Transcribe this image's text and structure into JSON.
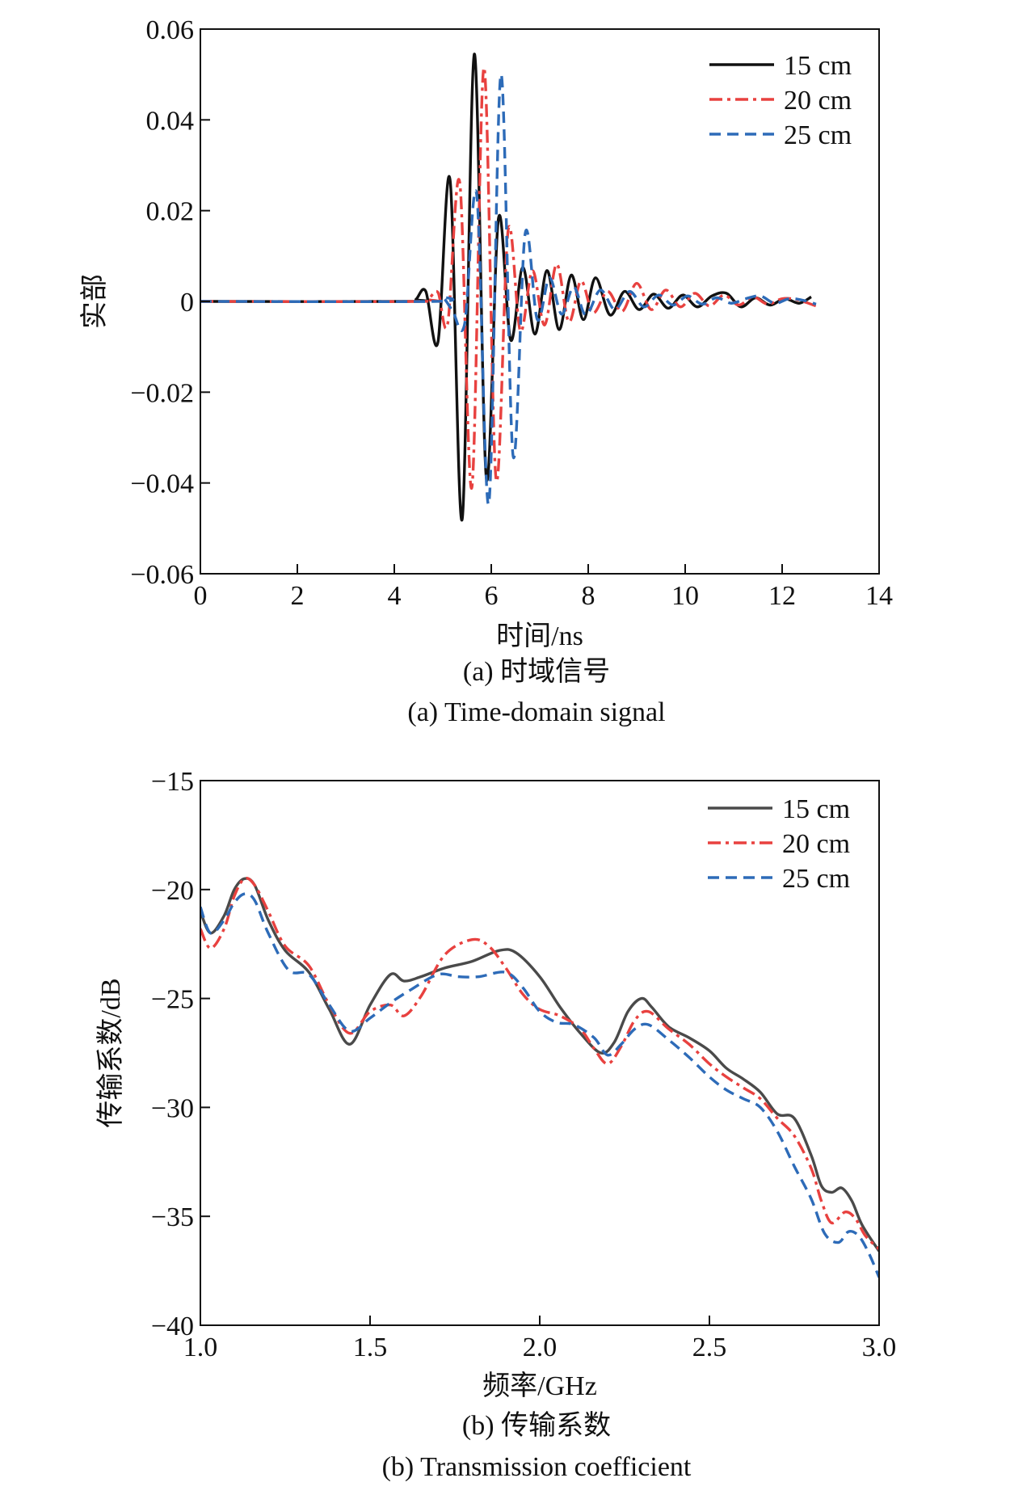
{
  "chart_data": [
    {
      "type": "line",
      "title": "",
      "xlabel": "时间/ns",
      "ylabel": "实部",
      "xlim": [
        0,
        14
      ],
      "ylim": [
        -0.06,
        0.06
      ],
      "xticks": [
        0,
        2,
        4,
        6,
        8,
        10,
        12,
        14
      ],
      "xtick_labels": [
        "0",
        "2",
        "4",
        "6",
        "8",
        "10",
        "12",
        "14"
      ],
      "yticks": [
        0.06,
        0.04,
        0.02,
        0,
        -0.02,
        -0.04,
        -0.06
      ],
      "ytick_labels": [
        "0.06",
        "0.04",
        "0.02",
        "0",
        "−0.02",
        "−0.04",
        "−0.06"
      ],
      "grid": false,
      "legend_position": "top-right",
      "caption_cn": "(a) 时域信号",
      "caption_en": "(a) Time-domain signal",
      "series": [
        {
          "name": "15 cm",
          "color": "#111111",
          "style": "solid",
          "x": [
            0,
            4.3,
            4.45,
            4.65,
            4.9,
            5.15,
            5.4,
            5.65,
            5.9,
            6.15,
            6.4,
            6.65,
            6.9,
            7.15,
            7.4,
            7.65,
            7.9,
            8.15,
            8.45,
            8.75,
            9.05,
            9.35,
            9.65,
            9.95,
            10.25,
            10.55,
            10.85,
            11.15,
            11.45,
            11.75,
            12.05,
            12.35,
            12.6
          ],
          "y": [
            0,
            0,
            0.0005,
            0.0022,
            -0.009,
            0.0268,
            -0.048,
            0.0545,
            -0.039,
            0.0184,
            -0.0085,
            0.0075,
            -0.0072,
            0.0068,
            -0.0062,
            0.0058,
            -0.004,
            0.0052,
            -0.003,
            0.0022,
            -0.0018,
            0.0016,
            -0.0015,
            0.0014,
            -0.0012,
            0.0012,
            0.0018,
            -0.0012,
            0.0008,
            -0.0008,
            0.0006,
            -0.0004,
            0.001
          ]
        },
        {
          "name": "20 cm",
          "color": "#e8413f",
          "style": "dashdot",
          "x": [
            0,
            4.5,
            4.7,
            4.9,
            5.1,
            5.35,
            5.6,
            5.85,
            6.1,
            6.35,
            6.6,
            6.85,
            7.1,
            7.35,
            7.6,
            7.85,
            8.1,
            8.4,
            8.7,
            9.0,
            9.3,
            9.6,
            9.9,
            10.2,
            10.5,
            10.8,
            11.1,
            11.4,
            11.7,
            12.0,
            12.3,
            12.7
          ],
          "y": [
            0,
            0,
            0.0005,
            0.002,
            -0.005,
            0.0262,
            -0.041,
            0.0515,
            -0.0392,
            0.0158,
            -0.0065,
            0.0068,
            -0.0052,
            0.0082,
            -0.0045,
            0.0045,
            -0.0025,
            0.0022,
            -0.0022,
            0.004,
            -0.0018,
            0.0025,
            -0.0012,
            0.0018,
            -0.001,
            0.0014,
            -0.0008,
            0.001,
            -0.0006,
            0.0006,
            0.0004,
            -0.001
          ]
        },
        {
          "name": "25 cm",
          "color": "#2d6bb8",
          "style": "dashed",
          "x": [
            0,
            4.8,
            5.0,
            5.2,
            5.45,
            5.7,
            5.95,
            6.2,
            6.45,
            6.7,
            6.95,
            7.2,
            7.45,
            7.7,
            7.95,
            8.25,
            8.55,
            8.85,
            9.15,
            9.45,
            9.75,
            10.05,
            10.35,
            10.65,
            10.95,
            11.25,
            11.55,
            11.85,
            12.15,
            12.45,
            12.7
          ],
          "y": [
            0,
            0,
            0.0008,
            -0.002,
            -0.005,
            0.0235,
            -0.0445,
            0.05,
            -0.034,
            0.015,
            -0.004,
            0.0052,
            -0.0028,
            0.0032,
            -0.003,
            0.0025,
            -0.0018,
            0.0022,
            -0.0012,
            0.0014,
            -0.0008,
            0.0012,
            -0.0006,
            0.0008,
            -0.0004,
            0.0006,
            0.0012,
            -0.0004,
            0.0006,
            0.0002,
            -0.0006
          ]
        }
      ]
    },
    {
      "type": "line",
      "title": "",
      "xlabel": "频率/GHz",
      "ylabel": "传输系数/dB",
      "xlim": [
        1.0,
        3.0
      ],
      "ylim": [
        -40,
        -15
      ],
      "xticks": [
        1.0,
        1.5,
        2.0,
        2.5,
        3.0
      ],
      "xtick_labels": [
        "1.0",
        "1.5",
        "2.0",
        "2.5",
        "3.0"
      ],
      "yticks": [
        -15,
        -20,
        -25,
        -30,
        -35,
        -40
      ],
      "ytick_labels": [
        "−15",
        "−20",
        "−25",
        "−30",
        "−35",
        "−40"
      ],
      "grid": false,
      "legend_position": "top-right",
      "caption_cn": "(b) 传输系数",
      "caption_en": "(b) Transmission coefficient",
      "series": [
        {
          "name": "15 cm",
          "color": "#4a4a4a",
          "style": "solid",
          "x": [
            1.0,
            1.03,
            1.07,
            1.1,
            1.13,
            1.16,
            1.2,
            1.25,
            1.32,
            1.38,
            1.44,
            1.5,
            1.56,
            1.6,
            1.65,
            1.72,
            1.8,
            1.88,
            1.93,
            2.0,
            2.06,
            2.12,
            2.18,
            2.22,
            2.26,
            2.3,
            2.33,
            2.38,
            2.44,
            2.5,
            2.55,
            2.6,
            2.65,
            2.7,
            2.75,
            2.8,
            2.83,
            2.86,
            2.89,
            2.92,
            2.95,
            3.0
          ],
          "y": [
            -21.0,
            -22.0,
            -21.2,
            -20.0,
            -19.5,
            -19.8,
            -21.4,
            -22.8,
            -23.8,
            -25.5,
            -27.1,
            -25.3,
            -23.9,
            -24.2,
            -24.0,
            -23.6,
            -23.3,
            -22.8,
            -22.9,
            -24.0,
            -25.4,
            -26.6,
            -27.5,
            -27.0,
            -25.6,
            -25.0,
            -25.4,
            -26.3,
            -26.8,
            -27.4,
            -28.2,
            -28.7,
            -29.3,
            -30.3,
            -30.5,
            -32.2,
            -33.6,
            -33.9,
            -33.7,
            -34.3,
            -35.4,
            -36.6
          ]
        },
        {
          "name": "20 cm",
          "color": "#e8413f",
          "style": "dashdot",
          "x": [
            1.0,
            1.03,
            1.07,
            1.1,
            1.13,
            1.16,
            1.2,
            1.25,
            1.32,
            1.38,
            1.44,
            1.5,
            1.56,
            1.6,
            1.65,
            1.72,
            1.8,
            1.85,
            1.9,
            1.95,
            2.0,
            2.06,
            2.12,
            2.16,
            2.2,
            2.24,
            2.28,
            2.32,
            2.38,
            2.44,
            2.5,
            2.55,
            2.6,
            2.65,
            2.7,
            2.75,
            2.8,
            2.83,
            2.86,
            2.9,
            2.93,
            2.96,
            3.0
          ],
          "y": [
            -21.8,
            -22.7,
            -21.8,
            -20.3,
            -19.5,
            -19.8,
            -21.0,
            -22.6,
            -23.5,
            -25.3,
            -26.6,
            -25.6,
            -25.3,
            -25.8,
            -24.9,
            -23.0,
            -22.3,
            -22.6,
            -23.6,
            -24.8,
            -25.5,
            -25.8,
            -26.4,
            -27.3,
            -28.0,
            -27.2,
            -26.0,
            -25.6,
            -26.4,
            -27.1,
            -28.0,
            -28.6,
            -29.1,
            -29.6,
            -30.5,
            -31.3,
            -32.8,
            -34.3,
            -35.3,
            -34.8,
            -35.1,
            -35.9,
            -36.5
          ]
        },
        {
          "name": "25 cm",
          "color": "#2d6bb8",
          "style": "dashed",
          "x": [
            1.0,
            1.03,
            1.07,
            1.1,
            1.13,
            1.16,
            1.2,
            1.26,
            1.32,
            1.38,
            1.44,
            1.5,
            1.56,
            1.62,
            1.7,
            1.76,
            1.82,
            1.9,
            1.95,
            2.0,
            2.05,
            2.1,
            2.16,
            2.2,
            2.24,
            2.28,
            2.32,
            2.38,
            2.44,
            2.5,
            2.55,
            2.6,
            2.65,
            2.7,
            2.75,
            2.8,
            2.84,
            2.88,
            2.91,
            2.94,
            2.97,
            3.0
          ],
          "y": [
            -20.8,
            -22.0,
            -21.4,
            -20.6,
            -20.2,
            -20.5,
            -22.0,
            -23.7,
            -23.9,
            -25.3,
            -26.5,
            -25.9,
            -25.2,
            -24.6,
            -23.9,
            -24.0,
            -24.0,
            -23.8,
            -24.5,
            -25.6,
            -26.1,
            -26.2,
            -26.8,
            -27.6,
            -27.1,
            -26.4,
            -26.2,
            -26.9,
            -27.7,
            -28.6,
            -29.2,
            -29.6,
            -30.0,
            -31.1,
            -32.7,
            -34.2,
            -35.8,
            -36.2,
            -35.7,
            -35.9,
            -36.7,
            -37.8
          ]
        }
      ]
    }
  ]
}
